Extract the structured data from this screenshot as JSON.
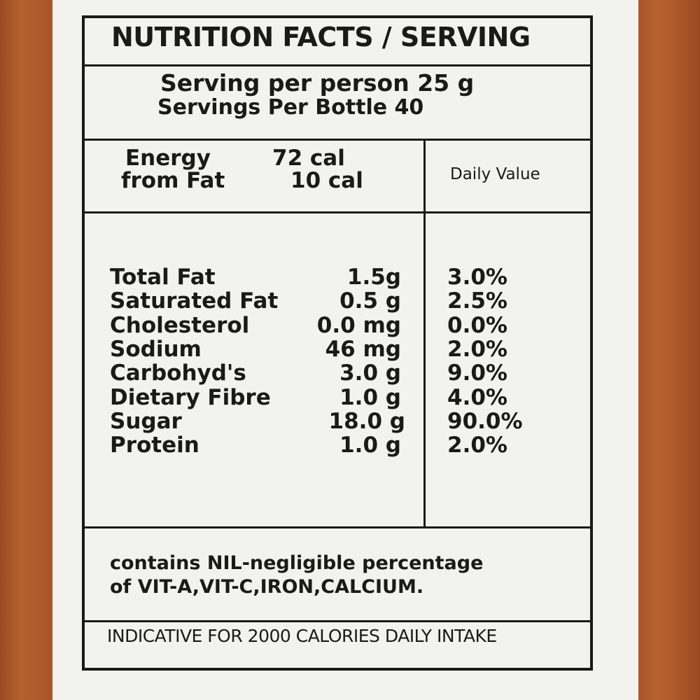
{
  "title": "NUTRITION FACTS /  SERVING",
  "serving_per_person": "Serving per person  25 g",
  "servings_per_bottle": "Servings  Per  Bottle  40",
  "energy": {
    "label": "Energy",
    "value": "72 cal"
  },
  "from_fat": {
    "label": "from Fat",
    "value": "10 cal"
  },
  "daily_value_header": "Daily Value",
  "nutrients": [
    {
      "name": "Total Fat",
      "amount": "1.5g",
      "dv": "3.0%"
    },
    {
      "name": "Saturated Fat",
      "amount": "0.5 g",
      "dv": "2.5%"
    },
    {
      "name": "Cholesterol",
      "amount": "0.0 mg",
      "dv": "0.0%"
    },
    {
      "name": "Sodium",
      "amount": "46 mg",
      "dv": "2.0%"
    },
    {
      "name": "Carbohyd's",
      "amount": "3.0 g",
      "dv": "9.0%"
    },
    {
      "name": "Dietary Fibre",
      "amount": "1.0 g",
      "dv": "4.0%"
    },
    {
      "name": "Sugar",
      "amount": "18.0 g",
      "dv": "90.0%"
    },
    {
      "name": "Protein",
      "amount": "1.0 g",
      "dv": "2.0%"
    }
  ],
  "note_line1": "contains NIL-negligible percentage",
  "note_line2": "of VIT-A,VIT-C,IRON,CALCIUM.",
  "indicative": "INDICATIVE FOR 2000 CALORIES DAILY INTAKE"
}
